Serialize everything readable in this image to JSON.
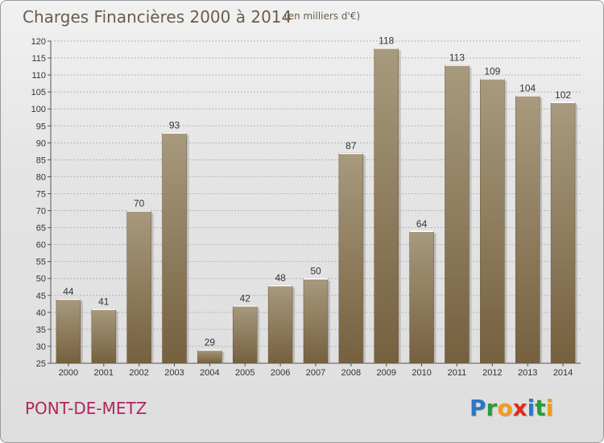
{
  "title": "Charges Financières 2000 à 2014",
  "subtitle": "(en milliers d'€)",
  "commune": "PONT-DE-METZ",
  "logo": {
    "text": "Proxiti",
    "letters": [
      {
        "char": "P",
        "color": "#2b77c7"
      },
      {
        "char": "r",
        "color": "#2b9b3c"
      },
      {
        "char": "o",
        "color": "#f39a1c"
      },
      {
        "char": "x",
        "color": "#e02a1d"
      },
      {
        "char": "i",
        "color": "#2b77c7"
      },
      {
        "char": "t",
        "color": "#2b9b3c"
      },
      {
        "char": "i",
        "color": "#f39a1c"
      }
    ]
  },
  "colors": {
    "bar_light": "#a89a7e",
    "bar_dark": "#75603f",
    "grid": "#b4b4b4"
  },
  "chart_data": {
    "type": "bar",
    "categories": [
      "2000",
      "2001",
      "2002",
      "2003",
      "2004",
      "2005",
      "2006",
      "2007",
      "2008",
      "2009",
      "2010",
      "2011",
      "2012",
      "2013",
      "2014"
    ],
    "values": [
      44,
      41,
      70,
      93,
      29,
      42,
      48,
      50,
      87,
      118,
      64,
      113,
      109,
      104,
      102
    ],
    "ylim": [
      25,
      120
    ],
    "yticks": [
      25,
      30,
      35,
      40,
      45,
      50,
      55,
      60,
      65,
      70,
      75,
      80,
      85,
      90,
      95,
      100,
      105,
      110,
      115,
      120
    ],
    "grid": true,
    "xlabel": "",
    "ylabel": ""
  }
}
